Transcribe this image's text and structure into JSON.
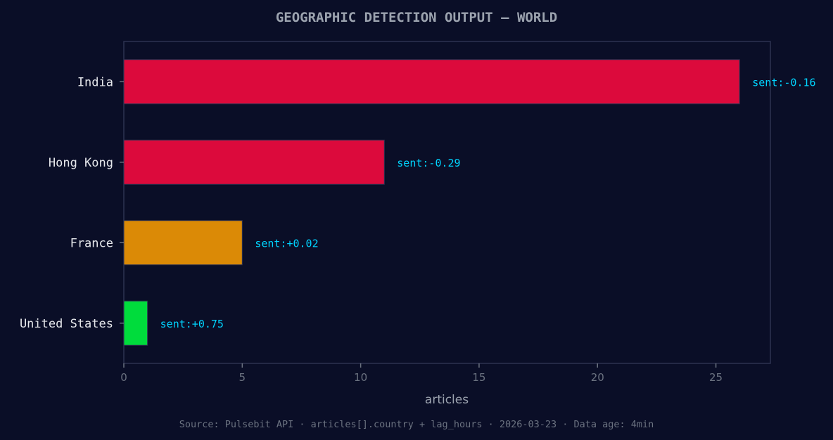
{
  "chart_data": {
    "type": "bar",
    "orientation": "horizontal",
    "title": "GEOGRAPHIC DETECTION OUTPUT — WORLD",
    "xlabel": "articles",
    "ylabel": "",
    "xlim": [
      0,
      27.3
    ],
    "xticks": [
      0,
      5,
      10,
      15,
      20,
      25
    ],
    "grid": false,
    "categories": [
      "India",
      "Hong Kong",
      "France",
      "United States"
    ],
    "values": [
      26,
      11,
      5,
      1
    ],
    "data_labels": [
      "sent:-0.16",
      "sent:-0.29",
      "sent:+0.02",
      "sent:+0.75"
    ],
    "colors": [
      "#dc0a3c",
      "#dc0a3c",
      "#db8a06",
      "#00dc3c"
    ],
    "footer": "Source: Pulsebit API · articles[].country + lag_hours · 2026-03-23 · Data age: 4min"
  },
  "colors": {
    "background": "#0a0e27",
    "axis": "#2d3250",
    "label": "#00d4ff"
  }
}
